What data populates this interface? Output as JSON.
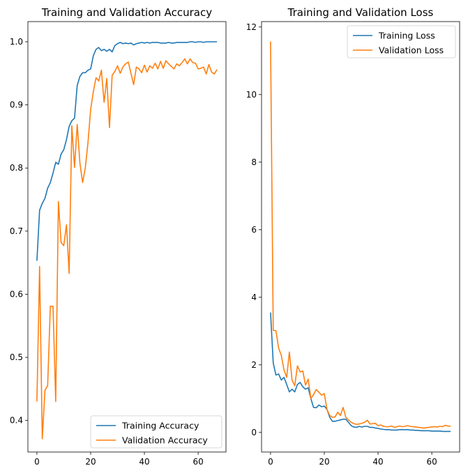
{
  "chart_data": [
    {
      "type": "line",
      "title": "Training and Validation Accuracy",
      "xlabel": "",
      "ylabel": "",
      "xlim": [
        -3.35,
        70.35
      ],
      "ylim": [
        0.35,
        1.032
      ],
      "xticks": [
        0,
        20,
        40,
        60
      ],
      "yticks": [
        0.4,
        0.5,
        0.6,
        0.7,
        0.8,
        0.9,
        1.0
      ],
      "ytick_labels": [
        "0.4",
        "0.5",
        "0.6",
        "0.7",
        "0.8",
        "0.9",
        "1.0"
      ],
      "legend_position": "lower right",
      "grid": false,
      "x": [
        0,
        1,
        2,
        3,
        4,
        5,
        6,
        7,
        8,
        9,
        10,
        11,
        12,
        13,
        14,
        15,
        16,
        17,
        18,
        19,
        20,
        21,
        22,
        23,
        24,
        25,
        26,
        27,
        28,
        29,
        30,
        31,
        32,
        33,
        34,
        35,
        36,
        37,
        38,
        39,
        40,
        41,
        42,
        43,
        44,
        45,
        46,
        47,
        48,
        49,
        50,
        51,
        52,
        53,
        54,
        55,
        56,
        57,
        58,
        59,
        60,
        61,
        62,
        63,
        64,
        65,
        66,
        67
      ],
      "series": [
        {
          "name": "Training Accuracy",
          "color": "#1f77b4",
          "values": [
            0.653,
            0.733,
            0.744,
            0.752,
            0.768,
            0.777,
            0.792,
            0.809,
            0.806,
            0.822,
            0.829,
            0.845,
            0.866,
            0.875,
            0.879,
            0.931,
            0.945,
            0.951,
            0.951,
            0.955,
            0.957,
            0.978,
            0.988,
            0.991,
            0.986,
            0.988,
            0.985,
            0.988,
            0.984,
            0.994,
            0.997,
            0.999,
            0.997,
            0.998,
            0.997,
            0.998,
            0.995,
            0.997,
            0.998,
            0.999,
            0.998,
            0.999,
            0.998,
            0.999,
            0.999,
            0.999,
            0.998,
            0.998,
            0.998,
            0.999,
            0.998,
            0.998,
            0.999,
            0.999,
            0.999,
            0.999,
            0.999,
            1.0,
            1.0,
            0.999,
            1.0,
            1.0,
            0.999,
            1.0,
            1.0,
            1.0,
            1.0,
            1.0
          ]
        },
        {
          "name": "Validation Accuracy",
          "color": "#ff7f0e",
          "values": [
            0.43,
            0.644,
            0.371,
            0.448,
            0.455,
            0.581,
            0.581,
            0.43,
            0.747,
            0.682,
            0.677,
            0.71,
            0.633,
            0.867,
            0.801,
            0.869,
            0.808,
            0.777,
            0.8,
            0.84,
            0.893,
            0.921,
            0.943,
            0.938,
            0.955,
            0.904,
            0.942,
            0.864,
            0.947,
            0.953,
            0.962,
            0.95,
            0.96,
            0.965,
            0.968,
            0.95,
            0.932,
            0.96,
            0.957,
            0.951,
            0.963,
            0.952,
            0.962,
            0.958,
            0.966,
            0.957,
            0.969,
            0.958,
            0.97,
            0.965,
            0.961,
            0.957,
            0.965,
            0.962,
            0.967,
            0.973,
            0.965,
            0.973,
            0.967,
            0.966,
            0.957,
            0.958,
            0.96,
            0.949,
            0.964,
            0.952,
            0.949,
            0.956
          ]
        }
      ]
    },
    {
      "type": "line",
      "title": "Training and Validation Loss",
      "xlabel": "",
      "ylabel": "",
      "xlim": [
        -3.35,
        70.35
      ],
      "ylim": [
        -0.58,
        12.16
      ],
      "xticks": [
        0,
        20,
        40,
        60
      ],
      "yticks": [
        0,
        2,
        4,
        6,
        8,
        10,
        12
      ],
      "ytick_labels": [
        "0",
        "2",
        "4",
        "6",
        "8",
        "10",
        "12"
      ],
      "legend_position": "upper right",
      "grid": false,
      "x": [
        0,
        1,
        2,
        3,
        4,
        5,
        6,
        7,
        8,
        9,
        10,
        11,
        12,
        13,
        14,
        15,
        16,
        17,
        18,
        19,
        20,
        21,
        22,
        23,
        24,
        25,
        26,
        27,
        28,
        29,
        30,
        31,
        32,
        33,
        34,
        35,
        36,
        37,
        38,
        39,
        40,
        41,
        42,
        43,
        44,
        45,
        46,
        47,
        48,
        49,
        50,
        51,
        52,
        53,
        54,
        55,
        56,
        57,
        58,
        59,
        60,
        61,
        62,
        63,
        64,
        65,
        66,
        67
      ],
      "series": [
        {
          "name": "Training Loss",
          "color": "#1f77b4",
          "values": [
            3.55,
            2.05,
            1.7,
            1.73,
            1.55,
            1.63,
            1.42,
            1.2,
            1.28,
            1.2,
            1.42,
            1.48,
            1.35,
            1.28,
            1.32,
            1.0,
            0.74,
            0.73,
            0.81,
            0.76,
            0.78,
            0.68,
            0.45,
            0.33,
            0.33,
            0.35,
            0.37,
            0.39,
            0.39,
            0.3,
            0.2,
            0.16,
            0.15,
            0.18,
            0.16,
            0.18,
            0.18,
            0.15,
            0.15,
            0.13,
            0.12,
            0.1,
            0.09,
            0.08,
            0.08,
            0.07,
            0.07,
            0.07,
            0.08,
            0.08,
            0.08,
            0.08,
            0.07,
            0.07,
            0.06,
            0.06,
            0.05,
            0.05,
            0.05,
            0.05,
            0.04,
            0.04,
            0.04,
            0.04,
            0.03,
            0.03,
            0.03,
            0.03
          ]
        },
        {
          "name": "Validation Loss",
          "color": "#ff7f0e",
          "values": [
            11.57,
            3.02,
            3.01,
            2.5,
            2.28,
            1.85,
            1.63,
            2.38,
            1.55,
            1.38,
            1.97,
            1.79,
            1.82,
            1.4,
            1.58,
            1.0,
            1.12,
            1.27,
            1.19,
            1.1,
            1.15,
            0.68,
            0.5,
            0.45,
            0.46,
            0.6,
            0.5,
            0.74,
            0.45,
            0.37,
            0.3,
            0.26,
            0.24,
            0.25,
            0.27,
            0.3,
            0.36,
            0.25,
            0.26,
            0.27,
            0.2,
            0.22,
            0.18,
            0.17,
            0.17,
            0.19,
            0.15,
            0.17,
            0.19,
            0.17,
            0.18,
            0.2,
            0.18,
            0.17,
            0.16,
            0.15,
            0.14,
            0.13,
            0.14,
            0.15,
            0.16,
            0.17,
            0.16,
            0.18,
            0.17,
            0.21,
            0.19,
            0.18
          ]
        }
      ]
    }
  ]
}
